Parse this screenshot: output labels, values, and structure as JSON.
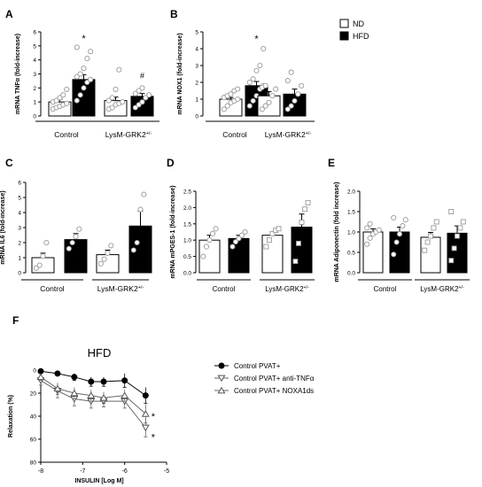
{
  "chart_data": [
    {
      "panel": "A",
      "type": "bar",
      "ylabel": "mRNA TNFα (fold-increase)",
      "ylim": [
        0,
        6
      ],
      "yticks": [
        0,
        1,
        2,
        3,
        4,
        5,
        6
      ],
      "groups": [
        "Control",
        "LysM-GRK2+/-"
      ],
      "series": [
        {
          "name": "ND",
          "values": [
            1.0,
            1.1
          ],
          "sem": [
            0.2,
            0.25
          ],
          "points": [
            [
              0.5,
              0.6,
              0.7,
              0.8,
              0.9,
              1.0,
              1.1,
              1.3,
              1.5,
              1.9
            ],
            [
              0.5,
              0.6,
              0.8,
              0.9,
              1.0,
              1.1,
              1.3,
              1.9,
              3.3
            ]
          ]
        },
        {
          "name": "HFD",
          "values": [
            2.6,
            1.4
          ],
          "sem": [
            0.35,
            0.2
          ],
          "points": [
            [
              1.1,
              1.5,
              2.0,
              2.4,
              2.6,
              2.8,
              3.0,
              3.4,
              4.1,
              4.6,
              4.9
            ],
            [
              0.6,
              0.8,
              1.0,
              1.3,
              1.5,
              1.6,
              1.8,
              2.0
            ]
          ]
        }
      ],
      "annotations": [
        {
          "text": "*",
          "group": 0,
          "series": 1,
          "y": 5.3
        },
        {
          "text": "#",
          "group": 1,
          "series": 1,
          "y": 2.7
        }
      ]
    },
    {
      "panel": "B",
      "type": "bar",
      "ylabel": "mRNA NOX1 (fold-increase)",
      "ylim": [
        0,
        5
      ],
      "yticks": [
        0,
        1,
        2,
        3,
        4,
        5
      ],
      "groups": [
        "Control",
        "LysM-GRK2+/-"
      ],
      "series": [
        {
          "name": "ND",
          "values": [
            1.0,
            1.2
          ],
          "sem": [
            0.1,
            0.25
          ],
          "points": [
            [
              0.4,
              0.6,
              0.8,
              0.9,
              1.0,
              1.1,
              1.2,
              1.3,
              1.5,
              1.6
            ],
            [
              0.4,
              0.6,
              0.8,
              1.2,
              1.6,
              1.7,
              1.8
            ]
          ]
        },
        {
          "name": "HFD",
          "values": [
            1.8,
            1.3
          ],
          "sem": [
            0.25,
            0.3
          ],
          "points": [
            [
              0.6,
              0.9,
              1.2,
              1.6,
              1.8,
              2.0,
              2.2,
              2.7,
              3.0,
              4.0
            ],
            [
              0.4,
              0.6,
              0.9,
              1.3,
              1.8,
              2.1,
              2.6
            ]
          ]
        }
      ],
      "annotations": [
        {
          "text": "*",
          "group": 0,
          "series": 1,
          "y": 4.4
        }
      ]
    },
    {
      "panel": "C",
      "type": "bar",
      "ylabel": "mRNA IL6 (fold-increase)",
      "ylim": [
        0,
        6
      ],
      "yticks": [
        0,
        1,
        2,
        3,
        4,
        5,
        6
      ],
      "groups": [
        "Control",
        "LysM-GRK2+/-"
      ],
      "series": [
        {
          "name": "ND",
          "values": [
            1.0,
            1.2
          ],
          "sem": [
            0.3,
            0.3
          ],
          "points": [
            [
              0.3,
              0.5,
              1.1,
              2.0
            ],
            [
              0.6,
              0.9,
              1.3,
              1.8
            ]
          ]
        },
        {
          "name": "HFD",
          "values": [
            2.2,
            3.1
          ],
          "sem": [
            0.4,
            1.0
          ],
          "points": [
            [
              1.6,
              2.0,
              2.4,
              2.9
            ],
            [
              1.5,
              2.0,
              4.2,
              5.2
            ]
          ]
        }
      ],
      "annotations": []
    },
    {
      "panel": "D",
      "type": "bar",
      "ylabel": "mRNA mPGES-1 (fold-increase)",
      "ylim": [
        0,
        2.5
      ],
      "yticks": [
        0.0,
        0.5,
        1.0,
        1.5,
        2.0,
        2.5
      ],
      "ytick_labels": [
        "0.0",
        "0.5",
        "1.0",
        "1.5",
        "2.0",
        "2.5"
      ],
      "groups": [
        "Control",
        "LysM-GRK2+/-"
      ],
      "series": [
        {
          "name": "ND",
          "values": [
            1.0,
            1.15
          ],
          "sem": [
            0.15,
            0.1
          ],
          "points": [
            [
              0.5,
              0.8,
              1.0,
              1.2,
              1.35
            ],
            [
              0.8,
              1.0,
              1.2,
              1.3,
              1.35
            ]
          ]
        },
        {
          "name": "HFD",
          "values": [
            1.05,
            1.4
          ],
          "sem": [
            0.1,
            0.4
          ],
          "points": [
            [
              0.8,
              0.95,
              1.05,
              1.15,
              1.25
            ],
            [
              0.35,
              0.9,
              1.55,
              1.95,
              2.15
            ]
          ]
        }
      ],
      "annotations": []
    },
    {
      "panel": "E",
      "type": "bar",
      "ylabel": "mRNA Adiponectin (fold increase)",
      "ylim": [
        0,
        2.0
      ],
      "yticks": [
        0.0,
        0.5,
        1.0,
        1.5,
        2.0
      ],
      "ytick_labels": [
        "0.0",
        "0.5",
        "1.0",
        "1.5",
        "2.0"
      ],
      "groups": [
        "Control",
        "LysM-GRK2+/-"
      ],
      "series": [
        {
          "name": "ND",
          "values": [
            1.0,
            0.87
          ],
          "sem": [
            0.08,
            0.12
          ],
          "points": [
            [
              0.7,
              0.85,
              0.95,
              1.0,
              1.05,
              1.1,
              1.2
            ],
            [
              0.55,
              0.75,
              0.9,
              1.1,
              1.25
            ]
          ]
        },
        {
          "name": "HFD",
          "values": [
            1.0,
            0.97
          ],
          "sem": [
            0.12,
            0.18
          ],
          "points": [
            [
              0.45,
              0.75,
              0.95,
              1.15,
              1.3,
              1.35
            ],
            [
              0.3,
              0.6,
              0.9,
              1.1,
              1.25,
              1.5
            ]
          ]
        }
      ],
      "annotations": []
    },
    {
      "panel": "F",
      "type": "line",
      "title": "HFD",
      "xlabel": "INSULIN [Log M]",
      "ylabel": "Relaxation (%)",
      "xlim": [
        -8,
        -5
      ],
      "xticks": [
        -8,
        -7,
        -6,
        -5
      ],
      "ylim": [
        0,
        80
      ],
      "yticks": [
        0,
        20,
        40,
        60,
        80
      ],
      "y_inverted": true,
      "x": [
        -8.0,
        -7.6,
        -7.2,
        -6.8,
        -6.5,
        -6.0,
        -5.5
      ],
      "series": [
        {
          "name": "Control PVAT+",
          "marker": "filled-circle",
          "values": [
            1,
            3,
            6,
            10,
            10,
            9,
            22
          ],
          "err": [
            1,
            2,
            3,
            4,
            4,
            6,
            7
          ]
        },
        {
          "name": "Control PVAT+ anti-TNFα",
          "marker": "open-triangle-down",
          "values": [
            9,
            18,
            25,
            27,
            27,
            27,
            50
          ],
          "err": [
            4,
            6,
            6,
            6,
            5,
            6,
            8
          ]
        },
        {
          "name": "Control PVAT+ NOXA1ds",
          "marker": "open-triangle-up",
          "values": [
            6,
            16,
            20,
            22,
            24,
            22,
            38
          ],
          "err": [
            3,
            5,
            5,
            5,
            5,
            5,
            8
          ]
        }
      ],
      "annotations": [
        {
          "text": "*",
          "x": -5.32,
          "y": 40
        },
        {
          "text": "*",
          "x": -5.32,
          "y": 58
        }
      ]
    }
  ],
  "legend": [
    {
      "name": "ND",
      "fill": "#ffffff"
    },
    {
      "name": "HFD",
      "fill": "#000000"
    }
  ],
  "colors": {
    "nd_bar": "#ffffff",
    "hfd_bar": "#000000",
    "point": "#999999",
    "ink": "#000000"
  }
}
